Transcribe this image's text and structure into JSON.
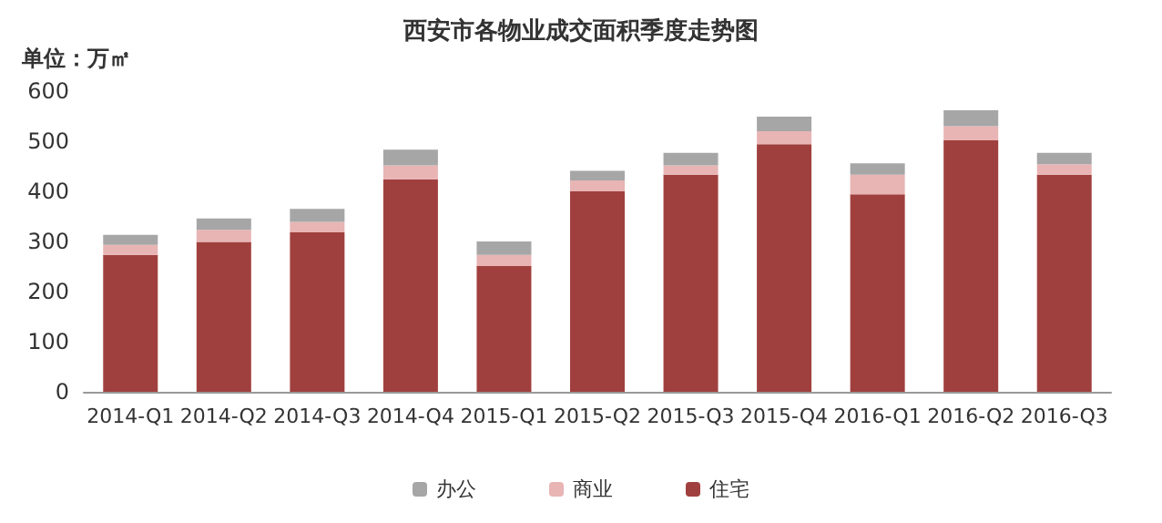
{
  "chart_data": {
    "type": "bar",
    "title": "西安市各物业成交面积季度走势图",
    "ylabel": "单位：万㎡",
    "categories": [
      "2014-Q1",
      "2014-Q2",
      "2014-Q3",
      "2014-Q4",
      "2015-Q1",
      "2015-Q2",
      "2015-Q3",
      "2015-Q4",
      "2016-Q1",
      "2016-Q2",
      "2016-Q3"
    ],
    "stacked": true,
    "ylim": [
      0,
      600
    ],
    "yticks": [
      0,
      100,
      200,
      300,
      400,
      500,
      600
    ],
    "grid": false,
    "legend": "bottom",
    "series": [
      {
        "name": "住宅",
        "color": "#a0403e",
        "values": [
          273,
          299,
          318,
          424,
          251,
          400,
          433,
          494,
          394,
          502,
          433
        ]
      },
      {
        "name": "商业",
        "color": "#e8b4b4",
        "values": [
          20,
          24,
          21,
          28,
          22,
          22,
          19,
          26,
          39,
          28,
          21
        ]
      },
      {
        "name": "办公",
        "color": "#a6a6a6",
        "values": [
          20,
          23,
          26,
          31,
          27,
          19,
          25,
          29,
          23,
          32,
          23
        ]
      }
    ]
  }
}
